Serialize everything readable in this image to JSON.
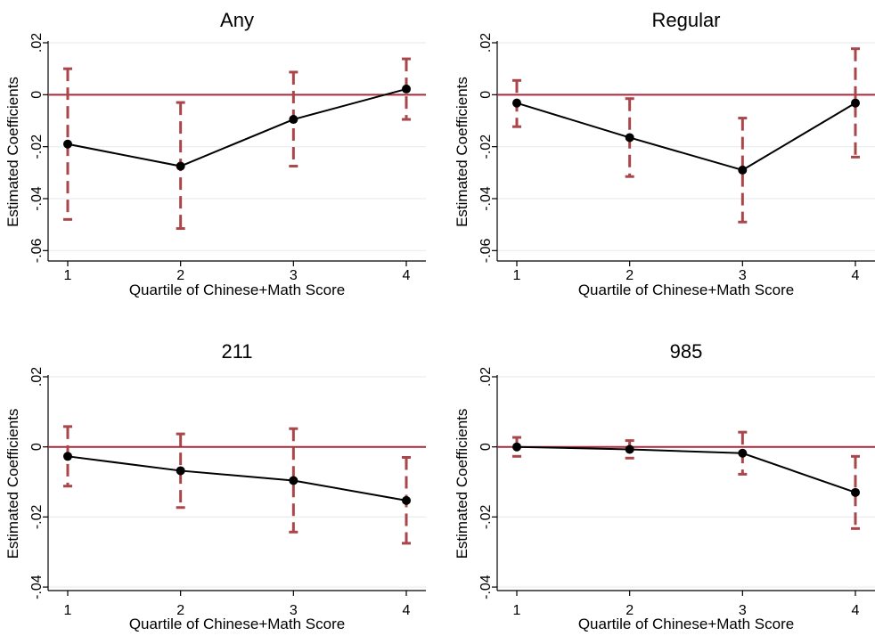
{
  "colors": {
    "zero_line": "#a8283d",
    "error_bar": "#a8464a",
    "series_line": "#000000",
    "grid": "#e7eef0",
    "axis": "#000000"
  },
  "chart_data": [
    {
      "type": "line",
      "title": "Any",
      "xlabel": "Quartile of Chinese+Math Score",
      "ylabel": "Estimated Coefficients",
      "x": [
        1,
        2,
        3,
        4
      ],
      "xtick_labels": [
        "1",
        "2",
        "3",
        "4"
      ],
      "ylim": [
        -0.064,
        0.02
      ],
      "yticks": [
        0.02,
        0,
        -0.02,
        -0.04,
        -0.06
      ],
      "ytick_labels": [
        ".02",
        "0",
        "-.02",
        "-.04",
        "-.06"
      ],
      "grid": true,
      "reference_line_y": 0,
      "series": [
        {
          "values": [
            -0.019,
            -0.0275,
            -0.0095,
            0.0022
          ],
          "ci_low": [
            -0.048,
            -0.0515,
            -0.0275,
            -0.0095
          ],
          "ci_high": [
            0.01,
            -0.003,
            0.0087,
            0.0138
          ]
        }
      ]
    },
    {
      "type": "line",
      "title": "Regular",
      "xlabel": "Quartile of Chinese+Math Score",
      "ylabel": "Estimated Coefficients",
      "x": [
        1,
        2,
        3,
        4
      ],
      "xtick_labels": [
        "1",
        "2",
        "3",
        "4"
      ],
      "ylim": [
        -0.064,
        0.02
      ],
      "yticks": [
        0.02,
        0,
        -0.02,
        -0.04,
        -0.06
      ],
      "ytick_labels": [
        ".02",
        "0",
        "-.02",
        "-.04",
        "-.06"
      ],
      "grid": true,
      "reference_line_y": 0,
      "series": [
        {
          "values": [
            -0.0032,
            -0.0165,
            -0.029,
            -0.0032
          ],
          "ci_low": [
            -0.0123,
            -0.0315,
            -0.049,
            -0.024
          ],
          "ci_high": [
            0.0055,
            -0.0015,
            -0.009,
            0.0177
          ]
        }
      ]
    },
    {
      "type": "line",
      "title": "211",
      "xlabel": "Quartile of Chinese+Math Score",
      "ylabel": "Estimated Coefficients",
      "x": [
        1,
        2,
        3,
        4
      ],
      "xtick_labels": [
        "1",
        "2",
        "3",
        "4"
      ],
      "ylim": [
        -0.041,
        0.02
      ],
      "yticks": [
        0.02,
        0,
        -0.02,
        -0.04
      ],
      "ytick_labels": [
        ".02",
        "0",
        "-.02",
        "-.04"
      ],
      "grid": true,
      "reference_line_y": 0,
      "series": [
        {
          "values": [
            -0.0027,
            -0.0068,
            -0.0096,
            -0.0153
          ],
          "ci_low": [
            -0.0112,
            -0.0173,
            -0.0243,
            -0.0275
          ],
          "ci_high": [
            0.0058,
            0.0037,
            0.0052,
            -0.003
          ]
        }
      ]
    },
    {
      "type": "line",
      "title": "985",
      "xlabel": "Quartile of Chinese+Math Score",
      "ylabel": "Estimated Coefficients",
      "x": [
        1,
        2,
        3,
        4
      ],
      "xtick_labels": [
        "1",
        "2",
        "3",
        "4"
      ],
      "ylim": [
        -0.041,
        0.02
      ],
      "yticks": [
        0.02,
        0,
        -0.02,
        -0.04
      ],
      "ytick_labels": [
        ".02",
        "0",
        "-.02",
        "-.04"
      ],
      "grid": true,
      "reference_line_y": 0,
      "series": [
        {
          "values": [
            0.0,
            -0.0007,
            -0.0018,
            -0.013
          ],
          "ci_low": [
            -0.0027,
            -0.0032,
            -0.0078,
            -0.0233
          ],
          "ci_high": [
            0.0027,
            0.0018,
            0.0042,
            -0.0027
          ]
        }
      ]
    }
  ]
}
